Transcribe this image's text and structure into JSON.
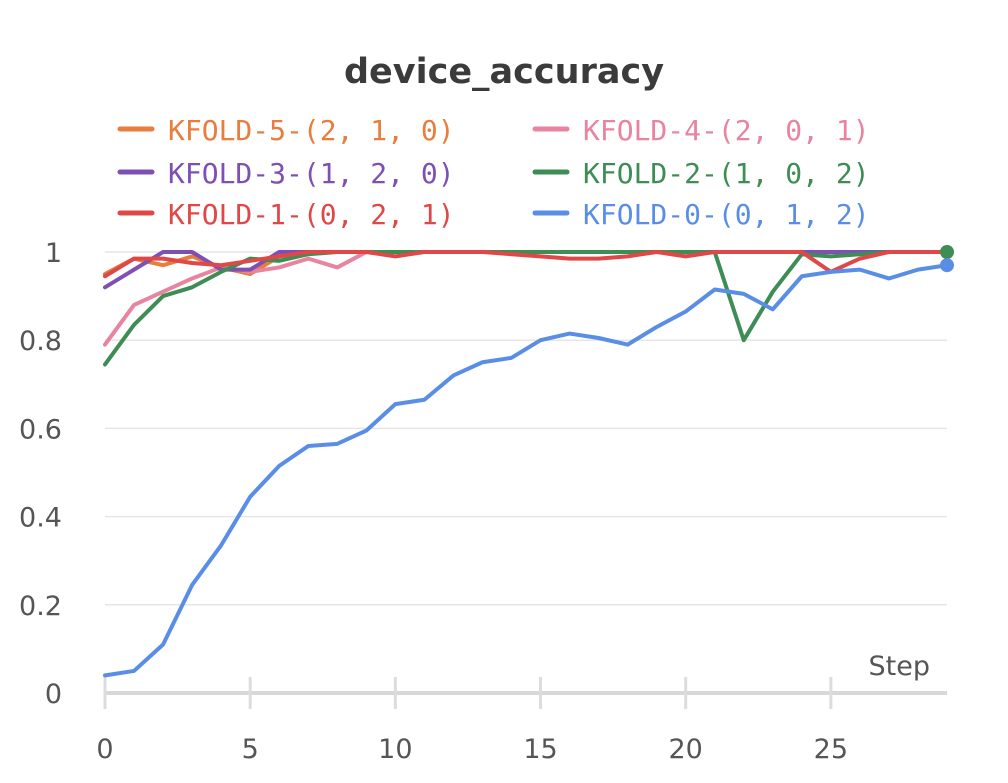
{
  "chart_data": {
    "type": "line",
    "title": "device_accuracy",
    "xlabel": "Step",
    "ylabel": "",
    "xlim": [
      0,
      29
    ],
    "ylim": [
      0,
      1
    ],
    "xticks": [
      0,
      5,
      10,
      15,
      20,
      25
    ],
    "yticks": [
      0,
      0.2,
      0.4,
      0.6,
      0.8,
      1
    ],
    "ytick_labels": [
      "0",
      "0.2",
      "0.4",
      "0.6",
      "0.8",
      "1"
    ],
    "xtick_labels": [
      "0",
      "5",
      "10",
      "15",
      "20",
      "25"
    ],
    "grid": true,
    "legend_position": "top",
    "x": [
      0,
      1,
      2,
      3,
      4,
      5,
      6,
      7,
      8,
      9,
      10,
      11,
      12,
      13,
      14,
      15,
      16,
      17,
      18,
      19,
      20,
      21,
      22,
      23,
      24,
      25,
      26,
      27,
      28,
      29
    ],
    "series": [
      {
        "name": "KFOLD-5-(2, 1, 0)",
        "color": "#e87d3e",
        "values": [
          0.95,
          0.985,
          0.97,
          0.99,
          0.965,
          0.95,
          0.99,
          1,
          1,
          1,
          1,
          1,
          1,
          1,
          1,
          1,
          1,
          1,
          1,
          1,
          1,
          1,
          1,
          1,
          1,
          1,
          1,
          1,
          1,
          1
        ]
      },
      {
        "name": "KFOLD-4-(2, 0, 1)",
        "color": "#e8849f",
        "values": [
          0.79,
          0.88,
          0.91,
          0.94,
          0.965,
          0.955,
          0.965,
          0.985,
          0.965,
          1,
          1,
          1,
          1,
          1,
          1,
          1,
          1,
          1,
          1,
          1,
          1,
          1,
          1,
          1,
          1,
          1,
          1,
          1,
          1,
          1
        ]
      },
      {
        "name": "KFOLD-3-(1, 2, 0)",
        "color": "#7e4fb5",
        "values": [
          0.92,
          0.96,
          1,
          1,
          0.96,
          0.96,
          1,
          1,
          1,
          1,
          1,
          1,
          1,
          1,
          1,
          1,
          1,
          1,
          1,
          1,
          1,
          1,
          1,
          1,
          1,
          1,
          1,
          1,
          1,
          1
        ]
      },
      {
        "name": "KFOLD-2-(1, 0, 2)",
        "color": "#3d8d55",
        "values": [
          0.745,
          0.835,
          0.9,
          0.92,
          0.955,
          0.985,
          0.98,
          0.995,
          1,
          1,
          1,
          1,
          1,
          1,
          1,
          1,
          1,
          1,
          1,
          1,
          1,
          1,
          0.8,
          0.91,
          0.995,
          0.99,
          0.995,
          1,
          1,
          1
        ]
      },
      {
        "name": "KFOLD-1-(0, 2, 1)",
        "color": "#e04848",
        "values": [
          0.945,
          0.985,
          0.985,
          0.975,
          0.97,
          0.98,
          0.99,
          1,
          1,
          1,
          0.99,
          1,
          1,
          1,
          0.995,
          0.99,
          0.985,
          0.985,
          0.99,
          1,
          0.99,
          1,
          1,
          1,
          1,
          0.955,
          0.985,
          1,
          1,
          1
        ]
      },
      {
        "name": "KFOLD-0-(0, 1, 2)",
        "color": "#5a8ee6",
        "values": [
          0.04,
          0.05,
          0.11,
          0.245,
          0.335,
          0.445,
          0.515,
          0.56,
          0.565,
          0.595,
          0.655,
          0.665,
          0.72,
          0.75,
          0.76,
          0.8,
          0.815,
          0.805,
          0.79,
          0.83,
          0.865,
          0.915,
          0.905,
          0.87,
          0.945,
          0.955,
          0.96,
          0.94,
          0.96,
          0.97
        ]
      }
    ],
    "endpoint_markers": [
      "KFOLD-2-(1, 0, 2)",
      "KFOLD-0-(0, 1, 2)"
    ]
  }
}
